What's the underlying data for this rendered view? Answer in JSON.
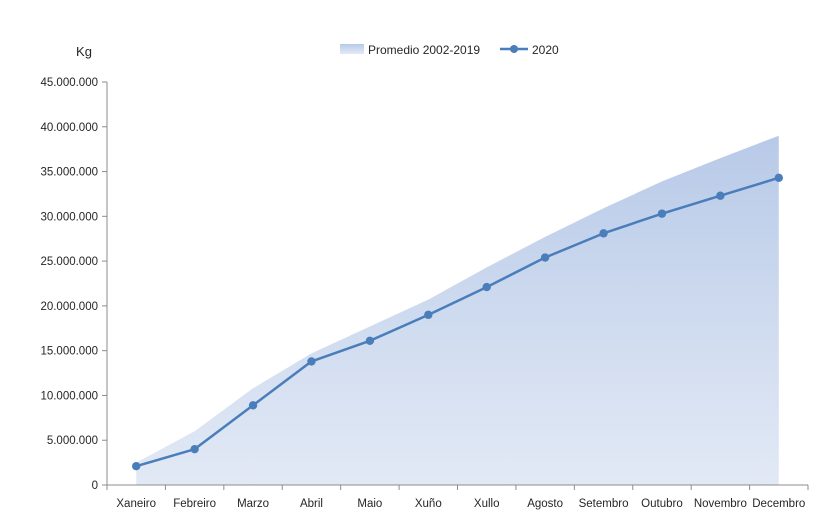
{
  "chart_data": {
    "type": "area",
    "ylabel": "Kg",
    "categories": [
      "Xaneiro",
      "Febreiro",
      "Marzo",
      "Abril",
      "Maio",
      "Xuño",
      "Xullo",
      "Agosto",
      "Setembro",
      "Outubro",
      "Novembro",
      "Decembro"
    ],
    "ylim": [
      0,
      45000000
    ],
    "yticks": [
      0,
      5000000,
      10000000,
      15000000,
      20000000,
      25000000,
      30000000,
      35000000,
      40000000,
      45000000
    ],
    "ytick_labels": [
      "0",
      "5.000.000",
      "10.000.000",
      "15.000.000",
      "20.000.000",
      "25.000.000",
      "30.000.000",
      "35.000.000",
      "40.000.000",
      "45.000.000"
    ],
    "grid": false,
    "legend_position": "top-center",
    "series": [
      {
        "name": "Promedio 2002-2019",
        "type": "area",
        "color": "#b4c7e7",
        "values": [
          2500000,
          6000000,
          10800000,
          14700000,
          17700000,
          20700000,
          24300000,
          27700000,
          30900000,
          33900000,
          36500000,
          39000000
        ]
      },
      {
        "name": "2020",
        "type": "line",
        "marker": "circle",
        "color": "#4a7ebb",
        "values": [
          2100000,
          4000000,
          8900000,
          13800000,
          16100000,
          19000000,
          22100000,
          25400000,
          28100000,
          30300000,
          32300000,
          34300000
        ]
      }
    ]
  }
}
